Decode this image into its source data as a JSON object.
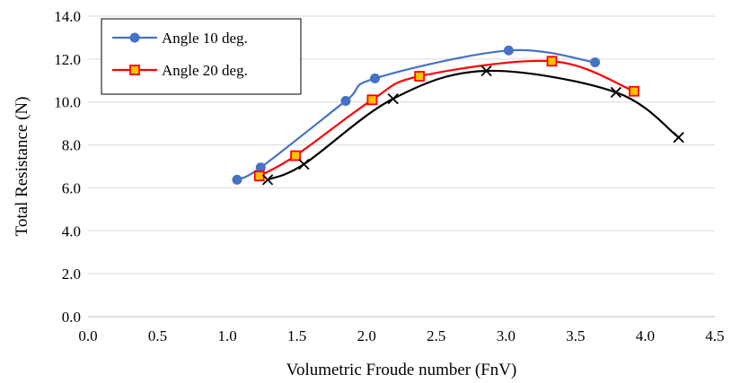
{
  "chart_data": {
    "type": "scatter",
    "title": "",
    "xlabel": "Volumetric Froude number (FnV)",
    "ylabel": "Total Resistance (N)",
    "xlim": [
      0.0,
      4.5
    ],
    "ylim": [
      0.0,
      14.0
    ],
    "x_ticks": [
      "0.0",
      "0.5",
      "1.0",
      "1.5",
      "2.0",
      "2.5",
      "3.0",
      "3.5",
      "4.0",
      "4.5"
    ],
    "y_ticks": [
      "0.0",
      "2.0",
      "4.0",
      "6.0",
      "8.0",
      "10.0",
      "12.0",
      "14.0"
    ],
    "grid": "horizontal",
    "legend_position": "top-left",
    "smoothed_lines": true,
    "series": [
      {
        "name": "Angle 10 deg.",
        "color": "#4472C4",
        "marker": "circle",
        "x": [
          1.07,
          1.24,
          1.85,
          2.06,
          3.02,
          3.64
        ],
        "y": [
          6.38,
          6.95,
          10.05,
          11.1,
          12.4,
          11.85
        ]
      },
      {
        "name": "Angle 20 deg.",
        "color": "#FF0000",
        "marker_fill": "#FFC000",
        "marker": "square",
        "x": [
          1.23,
          1.49,
          2.04,
          2.38,
          3.33,
          3.92
        ],
        "y": [
          6.55,
          7.5,
          10.1,
          11.2,
          11.9,
          10.5
        ]
      },
      {
        "name": "",
        "color": "#000000",
        "marker": "x",
        "x": [
          1.29,
          1.55,
          2.19,
          2.86,
          3.79,
          4.24
        ],
        "y": [
          6.38,
          7.1,
          10.15,
          11.45,
          10.45,
          8.35
        ]
      }
    ]
  }
}
